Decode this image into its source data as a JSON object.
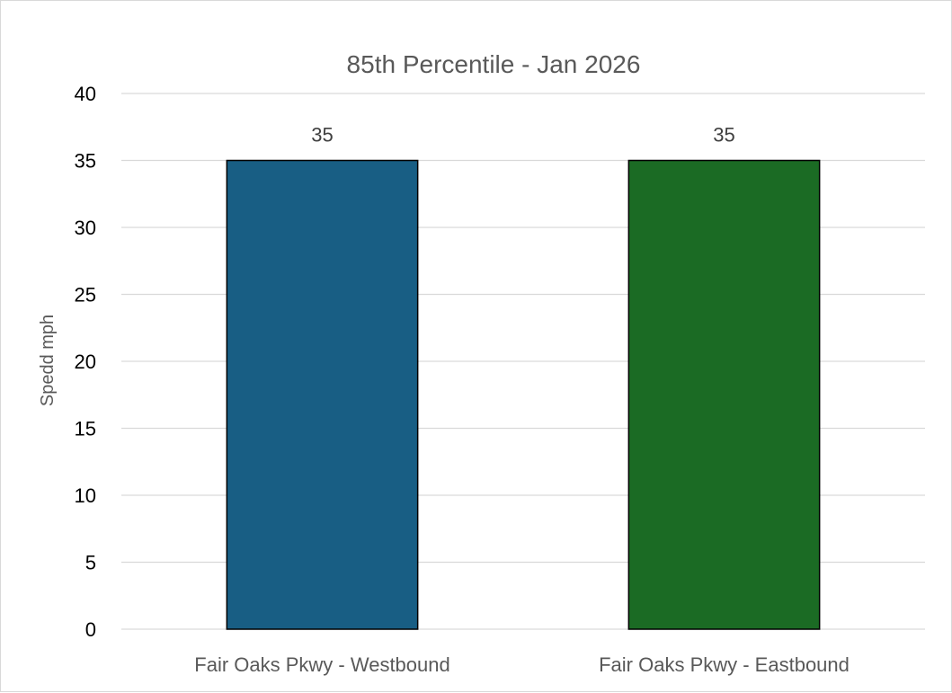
{
  "chart_data": {
    "type": "bar",
    "title": "85th Percentile - Jan 2026",
    "xlabel": "",
    "ylabel": "Spedd mph",
    "categories": [
      "Fair Oaks Pkwy - Westbound",
      "Fair Oaks Pkwy - Eastbound"
    ],
    "values": [
      35,
      35
    ],
    "data_labels": [
      "35",
      "35"
    ],
    "bar_colors": [
      "#185e84",
      "#1b6b24"
    ],
    "ylim": [
      0,
      40
    ],
    "yticks": [
      0,
      5,
      10,
      15,
      20,
      25,
      30,
      35,
      40
    ],
    "grid": true,
    "legend": "none"
  }
}
